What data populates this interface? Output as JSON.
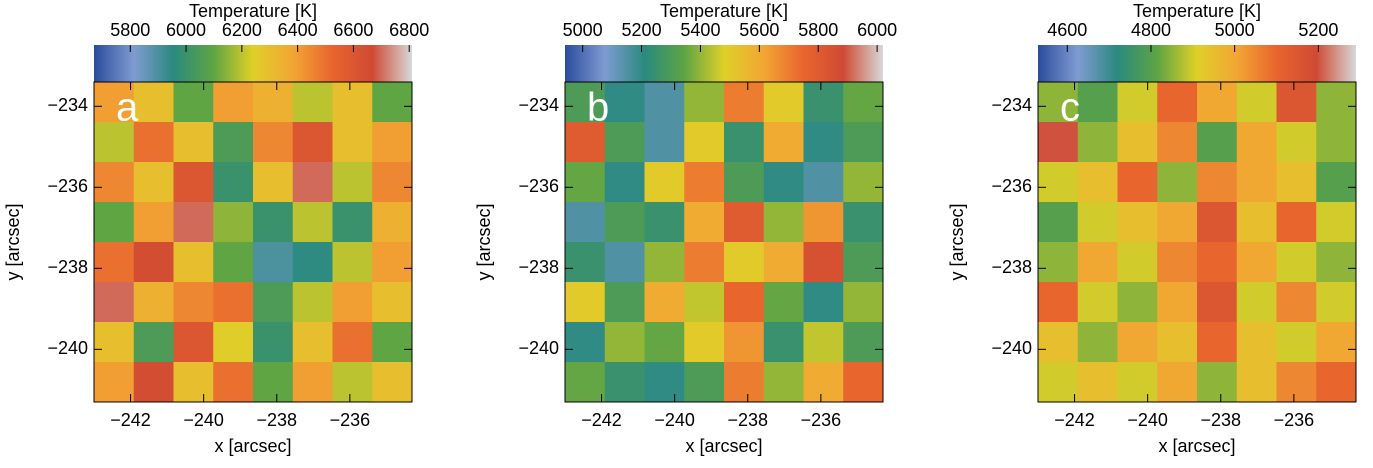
{
  "chart_data": [
    {
      "type": "heatmap",
      "label": "a",
      "colorbar_label": "Temperature [K]",
      "xlabel": "x [arcsec]",
      "ylabel": "y [arcsec]",
      "clim": [
        5670,
        6810
      ],
      "cticks": [
        5800,
        6000,
        6200,
        6400,
        6600,
        6800
      ],
      "xlim": [
        -243.0,
        -234.3
      ],
      "ylim": [
        -241.3,
        -233.4
      ],
      "xticks": [
        {
          "value": -242,
          "label": "−242"
        },
        {
          "value": -240,
          "label": "−240"
        },
        {
          "value": -238,
          "label": "−238"
        },
        {
          "value": -236,
          "label": "−236"
        }
      ],
      "yticks": [
        {
          "value": -234,
          "label": "−234"
        },
        {
          "value": -236,
          "label": "−236"
        },
        {
          "value": -238,
          "label": "−238"
        },
        {
          "value": -240,
          "label": "−240"
        }
      ],
      "colormap": [
        "#2b4c9c",
        "#7f9bd2",
        "#2a8a7e",
        "#5ea444",
        "#dfd028",
        "#f2a634",
        "#e8652e",
        "#d04a34",
        "#d8d8d8"
      ],
      "z": [
        [
          6400,
          6300,
          6100,
          6400,
          6350,
          6200,
          6300,
          6100
        ],
        [
          6200,
          6500,
          6300,
          6050,
          6450,
          6600,
          6300,
          6400
        ],
        [
          6450,
          6300,
          6600,
          6000,
          6300,
          6700,
          6200,
          6450
        ],
        [
          6100,
          6400,
          6700,
          6150,
          6000,
          6200,
          6000,
          6350
        ],
        [
          6500,
          6650,
          6300,
          6100,
          5900,
          5950,
          6200,
          6400
        ],
        [
          6700,
          6350,
          6450,
          6500,
          6050,
          6200,
          6400,
          6300
        ],
        [
          6300,
          6050,
          6600,
          6250,
          6000,
          6300,
          6500,
          6100
        ],
        [
          6400,
          6650,
          6300,
          6500,
          6100,
          6400,
          6200,
          6300
        ]
      ]
    },
    {
      "type": "heatmap",
      "label": "b",
      "colorbar_label": "Temperature [K]",
      "xlabel": "x [arcsec]",
      "ylabel": "y [arcsec]",
      "clim": [
        4940,
        6020
      ],
      "cticks": [
        5000,
        5200,
        5400,
        5600,
        5800,
        6000
      ],
      "xlim": [
        -243.0,
        -234.3
      ],
      "ylim": [
        -241.3,
        -233.4
      ],
      "xticks": [
        {
          "value": -242,
          "label": "−242"
        },
        {
          "value": -240,
          "label": "−240"
        },
        {
          "value": -238,
          "label": "−238"
        },
        {
          "value": -236,
          "label": "−236"
        }
      ],
      "yticks": [
        {
          "value": -234,
          "label": "−234"
        },
        {
          "value": -236,
          "label": "−236"
        },
        {
          "value": -238,
          "label": "−238"
        },
        {
          "value": -240,
          "label": "−240"
        }
      ],
      "colormap": [
        "#2b4c9c",
        "#7f9bd2",
        "#2a8a7e",
        "#5ea444",
        "#dfd028",
        "#f2a634",
        "#e8652e",
        "#d04a34",
        "#d8d8d8"
      ],
      "z": [
        [
          5300,
          5200,
          5150,
          5400,
          5700,
          5500,
          5250,
          5350
        ],
        [
          5800,
          5300,
          5150,
          5500,
          5250,
          5600,
          5200,
          5300
        ],
        [
          5350,
          5200,
          5500,
          5700,
          5300,
          5200,
          5150,
          5400
        ],
        [
          5150,
          5300,
          5250,
          5600,
          5800,
          5400,
          5650,
          5250
        ],
        [
          5250,
          5150,
          5400,
          5700,
          5500,
          5600,
          5850,
          5300
        ],
        [
          5500,
          5300,
          5600,
          5450,
          5750,
          5350,
          5200,
          5400
        ],
        [
          5200,
          5400,
          5350,
          5500,
          5650,
          5250,
          5450,
          5300
        ],
        [
          5350,
          5250,
          5200,
          5300,
          5700,
          5400,
          5600,
          5750
        ]
      ]
    },
    {
      "type": "heatmap",
      "label": "c",
      "colorbar_label": "Temperature [K]",
      "xlabel": "x [arcsec]",
      "ylabel": "y [arcsec]",
      "clim": [
        4530,
        5290
      ],
      "cticks": [
        4600,
        4800,
        5000,
        5200
      ],
      "xlim": [
        -243.0,
        -234.3
      ],
      "ylim": [
        -241.3,
        -233.4
      ],
      "xticks": [
        {
          "value": -242,
          "label": "−242"
        },
        {
          "value": -240,
          "label": "−240"
        },
        {
          "value": -238,
          "label": "−238"
        },
        {
          "value": -236,
          "label": "−236"
        }
      ],
      "yticks": [
        {
          "value": -234,
          "label": "−234"
        },
        {
          "value": -236,
          "label": "−236"
        },
        {
          "value": -238,
          "label": "−238"
        },
        {
          "value": -240,
          "label": "−240"
        }
      ],
      "colormap": [
        "#2b4c9c",
        "#7f9bd2",
        "#2a8a7e",
        "#5ea444",
        "#dfd028",
        "#f2a634",
        "#e8652e",
        "#d04a34",
        "#d8d8d8"
      ],
      "z": [
        [
          4850,
          4800,
          4900,
          5100,
          5000,
          4900,
          5150,
          4850
        ],
        [
          5200,
          4850,
          4950,
          5050,
          4800,
          5000,
          4900,
          4850
        ],
        [
          4900,
          4950,
          5100,
          4850,
          5050,
          5000,
          4950,
          4800
        ],
        [
          4800,
          4900,
          4950,
          5000,
          5150,
          4950,
          5100,
          4900
        ],
        [
          4850,
          5000,
          4900,
          5050,
          5100,
          5000,
          4900,
          4850
        ],
        [
          5100,
          4900,
          4850,
          5000,
          5150,
          4900,
          5050,
          4900
        ],
        [
          4950,
          4850,
          5000,
          4950,
          5100,
          4950,
          4900,
          5000
        ],
        [
          4900,
          4950,
          4900,
          5000,
          4850,
          4950,
          5050,
          5100
        ]
      ]
    }
  ]
}
